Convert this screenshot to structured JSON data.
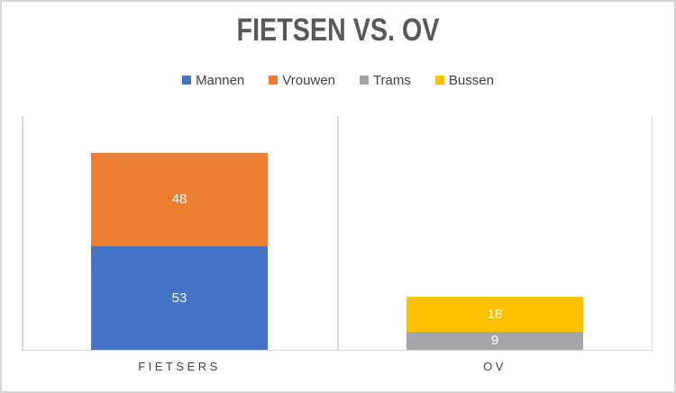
{
  "frame": {
    "background_color": "#FFFFFF",
    "border_color": "#D6D6D6"
  },
  "chart_data": {
    "type": "bar",
    "stacked": true,
    "title": "FIETSEN VS. OV",
    "title_color": "#595959",
    "categories": [
      "FIETSERS",
      "OV"
    ],
    "series": [
      {
        "name": "Mannen",
        "color": "#4472C4",
        "values": [
          53,
          0
        ]
      },
      {
        "name": "Vrouwen",
        "color": "#ED7D31",
        "values": [
          48,
          0
        ]
      },
      {
        "name": "Trams",
        "color": "#A5A5A5",
        "values": [
          0,
          9
        ]
      },
      {
        "name": "Bussen",
        "color": "#FFC000",
        "values": [
          0,
          18
        ]
      }
    ],
    "ylim": [
      0,
      120
    ],
    "y_axis_visible": false,
    "legend_position": "top",
    "legend_text_color": "#404040",
    "data_labels": true,
    "data_label_color": "#FFFFFF",
    "gridlines": "vertical-category-boundaries",
    "gridline_color": "#D9D9D9",
    "category_label_color": "#404040"
  }
}
